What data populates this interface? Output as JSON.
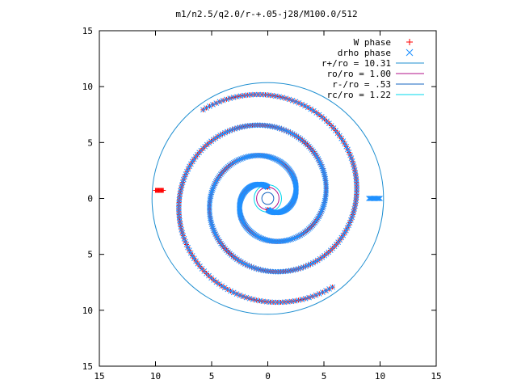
{
  "chart_data": {
    "type": "scatter",
    "title": "m1/n2.5/q2.0/r-+.05-j28/M100.0/512",
    "xlabel": "",
    "ylabel": "",
    "xlim": [
      -15,
      15
    ],
    "ylim": [
      -15,
      15
    ],
    "x_ticks": [
      -15,
      -10,
      -5,
      0,
      5,
      10,
      15
    ],
    "y_ticks": [
      -15,
      -10,
      -5,
      0,
      5,
      10,
      15
    ],
    "x_tick_labels": [
      "15",
      "10",
      "5",
      "0",
      "5",
      "10",
      "15"
    ],
    "y_tick_labels": [
      "15",
      "10",
      "5",
      "0",
      "5",
      "10",
      "15"
    ],
    "grid": false,
    "legend_position": "top-right",
    "legend": [
      {
        "label": "W phase",
        "kind": "marker",
        "symbol": "plus",
        "color": "#ff0000"
      },
      {
        "label": "drho phase",
        "kind": "marker",
        "symbol": "cross",
        "color": "#1e90ff"
      },
      {
        "label": "r+/ro = 10.31",
        "kind": "line",
        "color": "#1f8fd1"
      },
      {
        "label": "ro/ro = 1.00",
        "kind": "line",
        "color": "#b0108a"
      },
      {
        "label": "r-/ro = .53",
        "kind": "line",
        "color": "#1565c0"
      },
      {
        "label": "rc/ro = 1.22",
        "kind": "line",
        "color": "#00d8ee"
      }
    ],
    "circles": [
      {
        "name": "r+/ro",
        "radius": 10.31,
        "color": "#1f8fd1"
      },
      {
        "name": "ro/ro",
        "radius": 1.0,
        "color": "#b0108a"
      },
      {
        "name": "r-/ro",
        "radius": 0.53,
        "color": "#1565c0"
      },
      {
        "name": "rc/ro",
        "radius": 1.22,
        "color": "#00d8ee"
      }
    ],
    "series": [
      {
        "name": "W phase",
        "marker": "plus",
        "color": "#ff0000",
        "shape": "two-armed spiral with radial-boundary clusters",
        "spiral_arms": [
          {
            "r_start": 1.0,
            "r_end": 9.8,
            "theta_start_deg": 90,
            "turns": 1.6,
            "points": 300,
            "sense": "counter-clockwise"
          },
          {
            "r_start": 1.0,
            "r_end": 9.8,
            "theta_start_deg": 270,
            "turns": 1.6,
            "points": 300,
            "sense": "counter-clockwise"
          }
        ],
        "boundary_cluster": {
          "x_range": [
            -10.0,
            -9.3
          ],
          "y": 0.72,
          "points": 12
        }
      },
      {
        "name": "drho phase",
        "marker": "cross",
        "color": "#1e90ff",
        "shape": "two-armed spiral with radial-boundary clusters",
        "spiral_arms": [
          {
            "r_start": 1.0,
            "r_end": 9.8,
            "theta_start_deg": 90,
            "turns": 1.6,
            "points": 300,
            "sense": "counter-clockwise"
          },
          {
            "r_start": 1.0,
            "r_end": 9.8,
            "theta_start_deg": 270,
            "turns": 1.6,
            "points": 300,
            "sense": "counter-clockwise"
          }
        ],
        "boundary_cluster": {
          "x_range": [
            9.0,
            10.0
          ],
          "y": 0.0,
          "points": 12
        }
      }
    ]
  }
}
